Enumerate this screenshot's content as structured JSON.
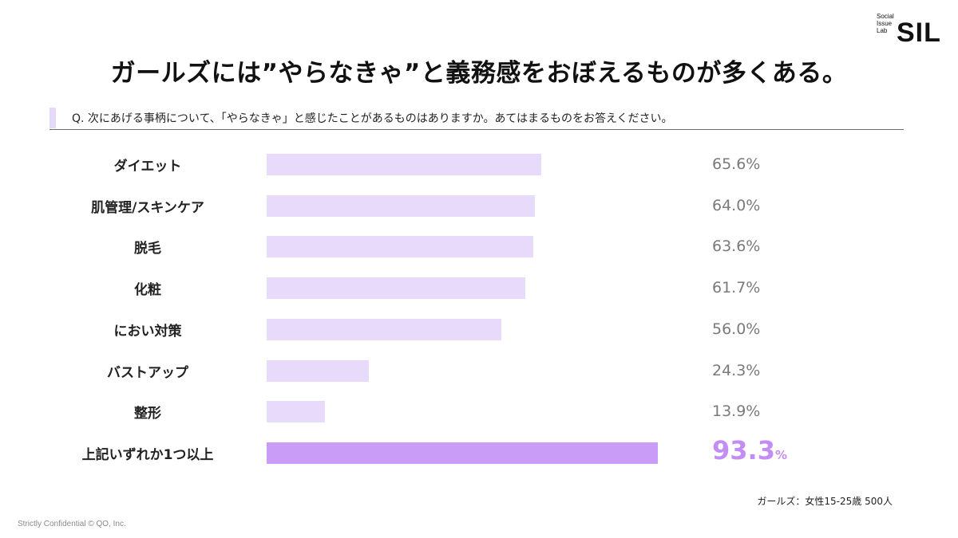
{
  "logo": {
    "lines": [
      "Social",
      "Issue",
      "Lab"
    ],
    "mark": "SIL"
  },
  "title": "ガールズには”やらなきゃ”と義務感をおぼえるものが多くある。",
  "question": "Q. 次にあげる事柄について、「やらなきゃ」と感じたことがあるものはありますか。あてはまるものをお答えください。",
  "chart_data": {
    "type": "bar",
    "orientation": "horizontal",
    "categories": [
      "ダイエット",
      "肌管理/スキンケア",
      "脱毛",
      "化粧",
      "におい対策",
      "バストアップ",
      "整形",
      "上記いずれか1つ以上"
    ],
    "values": [
      65.6,
      64.0,
      63.6,
      61.7,
      56.0,
      24.3,
      13.9,
      93.3
    ],
    "value_labels": [
      "65.6%",
      "64.0%",
      "63.6%",
      "61.7%",
      "56.0%",
      "24.3%",
      "13.9%",
      "93.3"
    ],
    "unit": "%",
    "highlight_index": 7,
    "xlim": [
      0,
      100
    ],
    "grid": false,
    "colors": {
      "bar": "#e7dafb",
      "highlight_bar": "#c99cf7",
      "highlight_text": "#c48df5",
      "value_text": "#7a7a7a",
      "accent": "#e6d9fa"
    }
  },
  "note": "ガールズ：女性15-25歳 500人",
  "footer": "Strictly Confidential  © QO, Inc."
}
